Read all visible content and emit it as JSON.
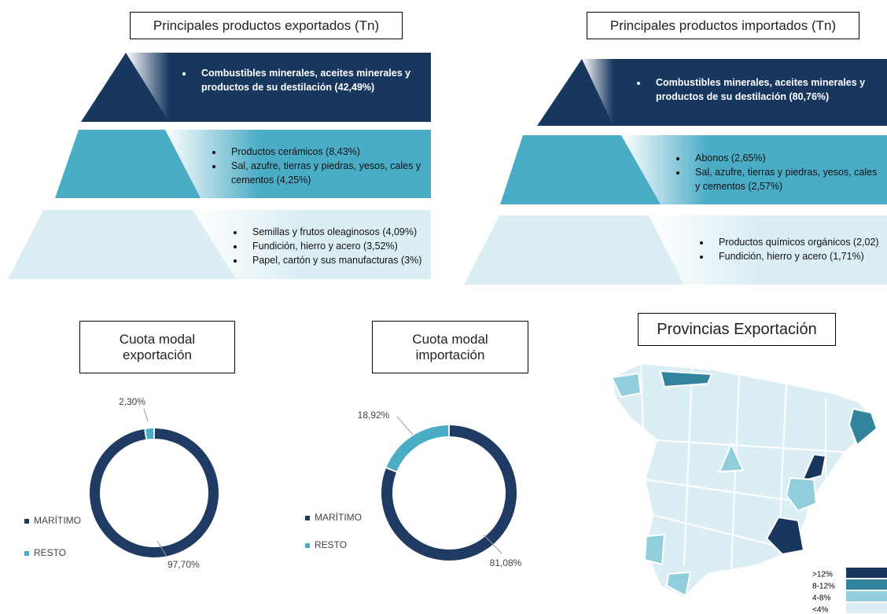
{
  "export_title": "Principales productos exportados (Tn)",
  "export_tiers": [
    {
      "items": [
        "Combustibles minerales, aceites minerales y productos de su destilación (42,49%)"
      ]
    },
    {
      "items": [
        "Productos cerámicos (8,43%)",
        "Sal, azufre, tierras y piedras, yesos, cales y cementos (4,25%)"
      ]
    },
    {
      "items": [
        "Semillas y frutos oleaginosos (4,09%)",
        "Fundición, hierro y acero (3,52%)",
        "Papel, cartón y sus manufacturas (3%)"
      ]
    }
  ],
  "import_title": "Principales productos importados (Tn)",
  "import_tiers": [
    {
      "items": [
        "Combustibles minerales, aceites minerales y productos de su destilación (80,76%)"
      ]
    },
    {
      "items": [
        "Abonos (2,65%)",
        "Sal, azufre, tierras y piedras, yesos, cales y cementos (2,57%)"
      ]
    },
    {
      "items": [
        "Productos químicos orgánicos (2,02)",
        "Fundición, hierro y acero (1,71%)"
      ]
    }
  ],
  "chart_data": [
    {
      "type": "donut",
      "title": "Cuota modal exportación",
      "categories": [
        "MARÍTIMO",
        "RESTO"
      ],
      "values": [
        97.7,
        2.3
      ],
      "value_labels": [
        "97,70%",
        "2,30%"
      ],
      "colors": [
        "#1f3a63",
        "#4bacc6"
      ]
    },
    {
      "type": "donut",
      "title": "Cuota modal importación",
      "categories": [
        "MARÍTIMO",
        "RESTO"
      ],
      "values": [
        81.08,
        18.92
      ],
      "value_labels": [
        "81,08%",
        "18,92%"
      ],
      "colors": [
        "#1f3a63",
        "#4bacc6"
      ]
    }
  ],
  "map": {
    "title": "Provincias Exportación",
    "legend": [
      {
        "label": ">12%",
        "color": "#17375e"
      },
      {
        "label": "8-12%",
        "color": "#31849b"
      },
      {
        "label": "4-8%",
        "color": "#92cddc"
      },
      {
        "label": "<4%",
        "color": "#dbeef4"
      }
    ]
  }
}
